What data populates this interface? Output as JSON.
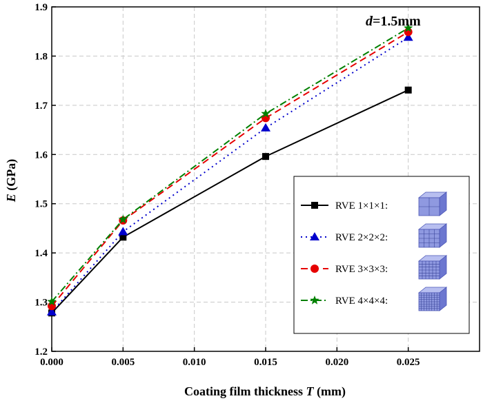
{
  "chart_data": {
    "type": "line",
    "xlabel_main": "Coating film thickness ",
    "xlabel_var": "T",
    "xlabel_unit": " (mm)",
    "ylabel_var": "E",
    "ylabel_unit": " (GPa)",
    "annotation_var": "d",
    "annotation_value": "=1.5mm",
    "x": [
      0.0,
      0.005,
      0.015,
      0.025
    ],
    "xlim": [
      0.0,
      0.03
    ],
    "ylim": [
      1.2,
      1.9
    ],
    "xticks": [
      "0.000",
      "0.005",
      "0.010",
      "0.015",
      "0.020",
      "0.025"
    ],
    "yticks": [
      "1.2",
      "1.3",
      "1.4",
      "1.5",
      "1.6",
      "1.7",
      "1.8",
      "1.9"
    ],
    "grid": true,
    "legend_position": "bottom-right",
    "series": [
      {
        "name": "RVE 1×1×1:",
        "values": [
          1.278,
          1.432,
          1.596,
          1.731
        ],
        "color": "#000000",
        "marker": "square",
        "dash": "solid"
      },
      {
        "name": "RVE 2×2×2:",
        "values": [
          1.28,
          1.443,
          1.654,
          1.838
        ],
        "color": "#0000cc",
        "marker": "triangle",
        "dash": "dot"
      },
      {
        "name": "RVE 3×3×3:",
        "values": [
          1.292,
          1.466,
          1.674,
          1.849
        ],
        "color": "#e60000",
        "marker": "circle",
        "dash": "dash"
      },
      {
        "name": "RVE 4×4×4:",
        "values": [
          1.301,
          1.468,
          1.683,
          1.857
        ],
        "color": "#008000",
        "marker": "star",
        "dash": "dashdot"
      }
    ]
  }
}
